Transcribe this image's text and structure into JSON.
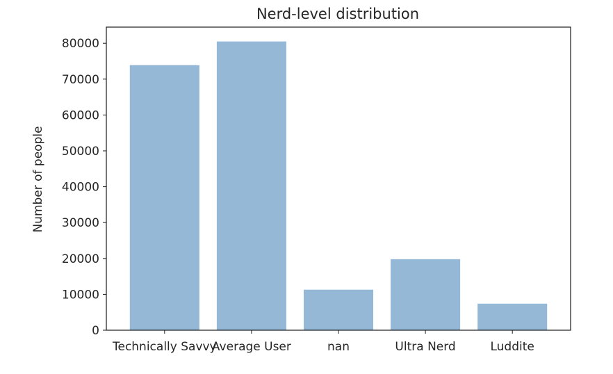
{
  "chart_data": {
    "type": "bar",
    "title": "Nerd-level distribution",
    "xlabel": "",
    "ylabel": "Number of people",
    "categories": [
      "Technically Savvy",
      "Average User",
      "nan",
      "Ultra Nerd",
      "Luddite"
    ],
    "values": [
      73900,
      80500,
      11300,
      19800,
      7400
    ],
    "ylim": [
      0,
      84500
    ],
    "yticks": [
      0,
      10000,
      20000,
      30000,
      40000,
      50000,
      60000,
      70000,
      80000
    ],
    "bar_color": "#94b8d6",
    "grid": false,
    "legend": "none"
  }
}
